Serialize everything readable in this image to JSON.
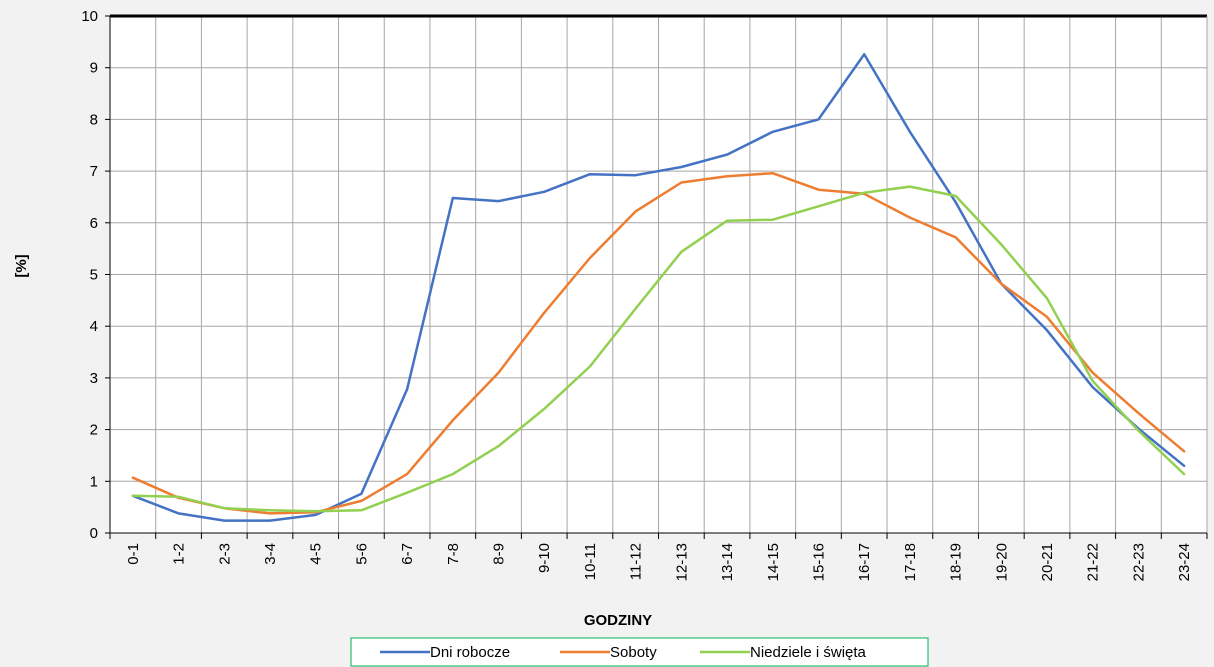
{
  "chart_data": {
    "type": "line",
    "xlabel": "GODZINY",
    "ylabel": "[%]",
    "ylim": [
      0,
      10
    ],
    "yticks": [
      0,
      1,
      2,
      3,
      4,
      5,
      6,
      7,
      8,
      9,
      10
    ],
    "grid": true,
    "legend_position": "bottom",
    "categories": [
      "0-1",
      "1-2",
      "2-3",
      "3-4",
      "4-5",
      "5-6",
      "6-7",
      "7-8",
      "8-9",
      "9-10",
      "10-11",
      "11-12",
      "12-13",
      "13-14",
      "14-15",
      "15-16",
      "16-17",
      "17-18",
      "18-19",
      "19-20",
      "20-21",
      "21-22",
      "22-23",
      "23-24"
    ],
    "series": [
      {
        "name": "Dni robocze",
        "color": "#4472c4",
        "values": [
          0.72,
          0.38,
          0.24,
          0.24,
          0.35,
          0.76,
          2.78,
          6.48,
          6.42,
          6.6,
          6.94,
          6.92,
          7.08,
          7.32,
          7.76,
          8.0,
          9.26,
          7.76,
          6.4,
          4.82,
          3.92,
          2.82,
          2.02,
          1.3
        ]
      },
      {
        "name": "Soboty",
        "color": "#ed7d31",
        "values": [
          1.07,
          0.68,
          0.48,
          0.38,
          0.4,
          0.62,
          1.14,
          2.18,
          3.1,
          4.26,
          5.32,
          6.22,
          6.78,
          6.9,
          6.96,
          6.64,
          6.56,
          6.1,
          5.72,
          4.82,
          4.18,
          3.1,
          2.32,
          1.58
        ]
      },
      {
        "name": "Niedziele i święta",
        "color": "#92d050",
        "values": [
          0.72,
          0.7,
          0.48,
          0.44,
          0.42,
          0.44,
          0.78,
          1.14,
          1.68,
          2.4,
          3.22,
          4.34,
          5.44,
          6.04,
          6.06,
          6.32,
          6.58,
          6.7,
          6.52,
          5.58,
          4.54,
          2.94,
          1.98,
          1.14
        ]
      }
    ]
  }
}
